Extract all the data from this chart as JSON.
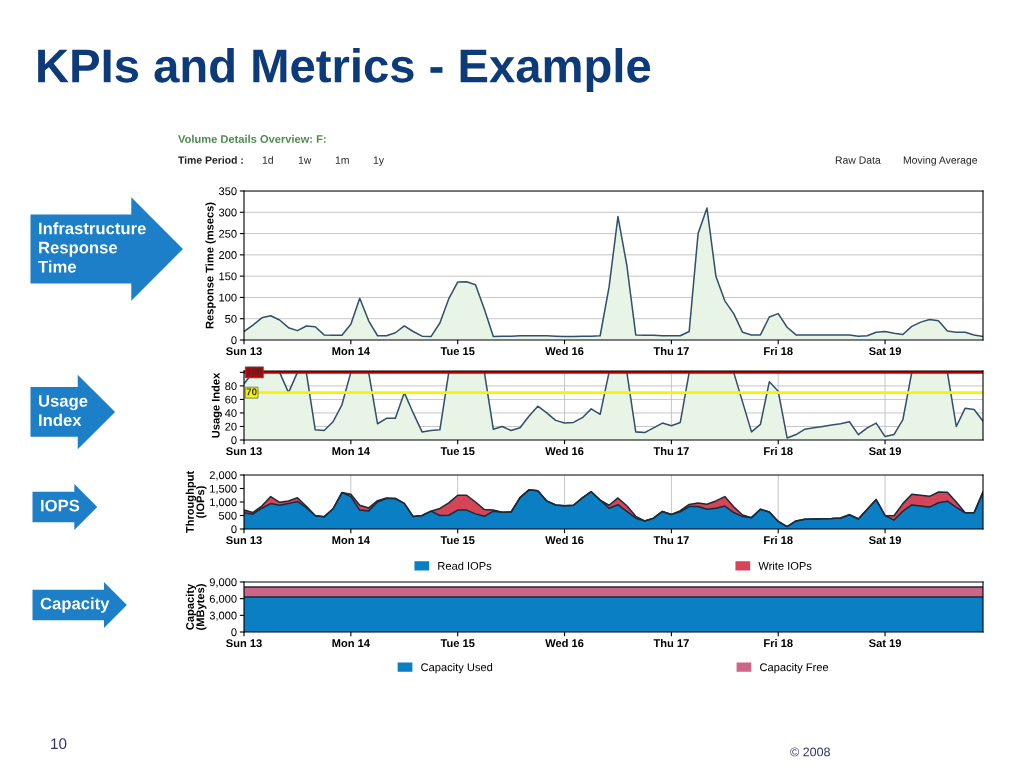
{
  "chart_data": [
    {
      "type": "area",
      "title": "KPIs and Metrics - Example",
      "subtitle": "Volume Details Overview: F:",
      "ylabel": "Response Time (msecs)",
      "annotations": [
        "Time Period :",
        "1d",
        "1w",
        "1m",
        "1y",
        "Raw Data",
        "Moving Average",
        "Infrastructure\nResponse\nTime"
      ],
      "categories": [
        "Sun 13",
        null,
        null,
        null,
        null,
        null,
        null,
        null,
        null,
        null,
        null,
        null,
        "Mon 14",
        null,
        null,
        null,
        null,
        null,
        null,
        null,
        null,
        null,
        null,
        null,
        "Tue 15",
        null,
        null,
        null,
        null,
        null,
        null,
        null,
        null,
        null,
        null,
        null,
        "Wed 16",
        null,
        null,
        null,
        null,
        null,
        null,
        null,
        null,
        null,
        null,
        null,
        "Thu 17",
        null,
        null,
        null,
        null,
        null,
        null,
        null,
        null,
        null,
        null,
        null,
        "Fri 18",
        null,
        null,
        null,
        null,
        null,
        null,
        null,
        null,
        null,
        null,
        null,
        "Sat 19",
        null,
        null,
        null,
        null,
        null,
        null,
        null,
        null,
        null,
        null,
        null
      ],
      "series": [
        {
          "color": "#e8f5e6",
          "values": [
            20,
            35,
            52,
            57,
            47,
            29,
            22,
            33,
            31,
            12,
            11,
            11,
            37,
            98,
            45,
            10,
            10,
            17,
            33,
            20,
            9,
            8,
            40,
            97,
            136,
            137,
            130,
            72,
            8,
            9,
            9,
            10,
            10,
            10,
            10,
            9,
            8,
            8,
            9,
            9,
            10,
            124,
            290,
            175,
            12,
            11,
            11,
            10,
            10,
            10,
            20,
            250,
            310,
            150,
            92,
            62,
            18,
            12,
            12,
            54,
            62,
            30,
            12,
            12,
            12,
            12,
            12,
            12,
            12,
            9,
            10,
            18,
            20,
            16,
            13,
            32,
            42,
            48,
            45,
            21,
            18,
            18,
            12,
            8
          ]
        }
      ],
      "ylim": [
        0,
        350
      ],
      "yticks": [
        0,
        50,
        100,
        150,
        200,
        250,
        300,
        350
      ],
      "grid": "y"
    },
    {
      "type": "area",
      "ylabel": "Usage Index",
      "annotations": [
        "Usage\nIndex"
      ],
      "categories": [
        "Sun 13",
        null,
        null,
        null,
        null,
        null,
        null,
        null,
        null,
        null,
        null,
        null,
        "Mon 14",
        null,
        null,
        null,
        null,
        null,
        null,
        null,
        null,
        null,
        null,
        null,
        "Tue 15",
        null,
        null,
        null,
        null,
        null,
        null,
        null,
        null,
        null,
        null,
        null,
        "Wed 16",
        null,
        null,
        null,
        null,
        null,
        null,
        null,
        null,
        null,
        null,
        null,
        "Thu 17",
        null,
        null,
        null,
        null,
        null,
        null,
        null,
        null,
        null,
        null,
        null,
        "Fri 18",
        null,
        null,
        null,
        null,
        null,
        null,
        null,
        null,
        null,
        null,
        null,
        "Sat 19",
        null,
        null,
        null,
        null,
        null,
        null,
        null,
        null,
        null,
        null,
        null
      ],
      "series": [
        {
          "color": "#e8f5e6",
          "values": [
            83,
            100,
            100,
            100,
            100,
            70,
            100,
            100,
            15,
            14,
            27,
            52,
            100,
            100,
            100,
            24,
            32,
            32,
            70,
            40,
            12,
            14,
            15,
            100,
            100,
            100,
            100,
            100,
            16,
            20,
            14,
            18,
            35,
            50,
            40,
            29,
            25,
            26,
            33,
            46,
            38,
            100,
            100,
            100,
            12,
            11,
            18,
            25,
            21,
            26,
            100,
            100,
            100,
            100,
            100,
            100,
            56,
            12,
            23,
            86,
            72,
            3,
            8,
            16,
            18,
            20,
            22,
            24,
            27,
            8,
            18,
            25,
            5,
            8,
            30,
            100,
            100,
            100,
            100,
            100,
            20,
            47,
            45,
            28
          ]
        }
      ],
      "ref_lines": [
        {
          "axis": "y",
          "value": 100,
          "label": "100",
          "color": "#c00000"
        },
        {
          "axis": "y",
          "value": 70,
          "label": "70",
          "color": "#f5f500"
        }
      ],
      "ylim": [
        0,
        102
      ],
      "yticks": [
        0,
        20,
        40,
        60,
        80,
        {
          "value": 100,
          "label": null
        }
      ],
      "grid": true
    },
    {
      "type": "area",
      "stacked": true,
      "ylabel": "Throughput\n(IOPs)",
      "annotations": [
        "IOPS"
      ],
      "legend": "bottom",
      "categories": [
        "Sun 13",
        null,
        null,
        null,
        null,
        null,
        null,
        null,
        null,
        null,
        null,
        null,
        "Mon 14",
        null,
        null,
        null,
        null,
        null,
        null,
        null,
        null,
        null,
        null,
        null,
        "Tue 15",
        null,
        null,
        null,
        null,
        null,
        null,
        null,
        null,
        null,
        null,
        null,
        "Wed 16",
        null,
        null,
        null,
        null,
        null,
        null,
        null,
        null,
        null,
        null,
        null,
        "Thu 17",
        null,
        null,
        null,
        null,
        null,
        null,
        null,
        null,
        null,
        null,
        null,
        "Fri 18",
        null,
        null,
        null,
        null,
        null,
        null,
        null,
        null,
        null,
        null,
        null,
        "Sat 19",
        null,
        null,
        null,
        null,
        null,
        null,
        null,
        null,
        null,
        null,
        null
      ],
      "series": [
        {
          "name": "Read IOPs",
          "color": "#0a7fc4",
          "values": [
            600,
            550,
            770,
            940,
            880,
            940,
            1020,
            790,
            490,
            450,
            750,
            1350,
            1200,
            700,
            670,
            1000,
            1130,
            1130,
            950,
            460,
            500,
            660,
            500,
            510,
            700,
            700,
            560,
            470,
            660,
            620,
            630,
            1160,
            1450,
            1420,
            1040,
            890,
            860,
            880,
            1150,
            1380,
            1070,
            770,
            900,
            650,
            400,
            300,
            400,
            650,
            540,
            640,
            830,
            830,
            730,
            770,
            850,
            610,
            460,
            420,
            730,
            630,
            280,
            90,
            300,
            360,
            370,
            380,
            390,
            410,
            530,
            370,
            730,
            1090,
            500,
            330,
            660,
            890,
            850,
            810,
            970,
            1030,
            800,
            600,
            600,
            1370
          ]
        },
        {
          "name": "Write IOPs",
          "color": "#d64458",
          "values": [
            100,
            60,
            80,
            260,
            110,
            100,
            140,
            50,
            10,
            0,
            0,
            0,
            90,
            180,
            110,
            50,
            20,
            0,
            0,
            0,
            0,
            0,
            260,
            460,
            550,
            550,
            440,
            250,
            40,
            0,
            0,
            0,
            0,
            0,
            0,
            0,
            0,
            0,
            0,
            0,
            0,
            110,
            250,
            210,
            70,
            0,
            0,
            0,
            0,
            40,
            80,
            130,
            190,
            270,
            350,
            210,
            60,
            0,
            0,
            0,
            0,
            0,
            0,
            0,
            0,
            0,
            0,
            0,
            0,
            0,
            0,
            0,
            0,
            160,
            280,
            400,
            400,
            400,
            400,
            330,
            200,
            0,
            0,
            0
          ]
        }
      ],
      "ylim": [
        0,
        2000
      ],
      "yticks": [
        0,
        500,
        {
          "value": 1000,
          "label": "1,000"
        },
        {
          "value": 1500,
          "label": "1,500"
        },
        {
          "value": 2000,
          "label": "2,000"
        }
      ],
      "grid": "x"
    },
    {
      "type": "area",
      "stacked": true,
      "ylabel": "Capacity\n(MBytes)",
      "annotations": [
        "Capacity",
        "10",
        "© 2008"
      ],
      "legend": "bottom",
      "categories": [
        "Sun 13",
        null,
        null,
        null,
        null,
        null,
        null,
        null,
        null,
        null,
        null,
        null,
        "Mon 14",
        null,
        null,
        null,
        null,
        null,
        null,
        null,
        null,
        null,
        null,
        null,
        "Tue 15",
        null,
        null,
        null,
        null,
        null,
        null,
        null,
        null,
        null,
        null,
        null,
        "Wed 16",
        null,
        null,
        null,
        null,
        null,
        null,
        null,
        null,
        null,
        null,
        null,
        "Thu 17",
        null,
        null,
        null,
        null,
        null,
        null,
        null,
        null,
        null,
        null,
        null,
        "Fri 18",
        null,
        null,
        null,
        null,
        null,
        null,
        null,
        null,
        null,
        null,
        null,
        "Sat 19",
        null,
        null,
        null,
        null,
        null,
        null,
        null,
        null,
        null,
        null,
        null
      ],
      "series": [
        {
          "name": "Capacity Used",
          "color": "#0a7fc4",
          "values": [
            6300,
            6300,
            6300,
            6300,
            6300,
            6300,
            6300,
            6300,
            6300,
            6300,
            6300,
            6300,
            6300,
            6300,
            6300,
            6300,
            6300,
            6300,
            6300,
            6300,
            6300,
            6300,
            6300,
            6300,
            6300,
            6300,
            6300,
            6300,
            6300,
            6300,
            6300,
            6300,
            6300,
            6300,
            6300,
            6300,
            6300,
            6300,
            6300,
            6300,
            6300,
            6300,
            6300,
            6300,
            6300,
            6300,
            6300,
            6300,
            6300,
            6300,
            6300,
            6300,
            6300,
            6300,
            6300,
            6300,
            6300,
            6300,
            6300,
            6300,
            6300,
            6300,
            6300,
            6300,
            6300,
            6300,
            6300,
            6300,
            6300,
            6300,
            6300,
            6300,
            6300,
            6300,
            6300,
            6300,
            6300,
            6300,
            6300,
            6300,
            6300,
            6300,
            6300,
            6300
          ]
        },
        {
          "name": "Capacity Free",
          "color": "#cc6688",
          "values": [
            1800,
            1800,
            1800,
            1800,
            1800,
            1800,
            1800,
            1800,
            1800,
            1800,
            1800,
            1800,
            1800,
            1800,
            1800,
            1800,
            1800,
            1800,
            1800,
            1800,
            1800,
            1800,
            1800,
            1800,
            1800,
            1800,
            1800,
            1800,
            1800,
            1800,
            1800,
            1800,
            1800,
            1800,
            1800,
            1800,
            1800,
            1800,
            1800,
            1800,
            1800,
            1800,
            1800,
            1800,
            1800,
            1800,
            1800,
            1800,
            1800,
            1800,
            1800,
            1800,
            1800,
            1800,
            1800,
            1800,
            1800,
            1800,
            1800,
            1800,
            1800,
            1800,
            1800,
            1800,
            1800,
            1800,
            1800,
            1800,
            1800,
            1800,
            1800,
            1800,
            1800,
            1800,
            1800,
            1800,
            1800,
            1800,
            1800,
            1800,
            1800,
            1800,
            1800,
            1800
          ]
        }
      ],
      "ylim": [
        0,
        9000
      ],
      "yticks": [
        0,
        {
          "value": 3000,
          "label": "3,000"
        },
        {
          "value": 6000,
          "label": "6,000"
        },
        {
          "value": 9000,
          "label": "9,000"
        }
      ]
    }
  ]
}
